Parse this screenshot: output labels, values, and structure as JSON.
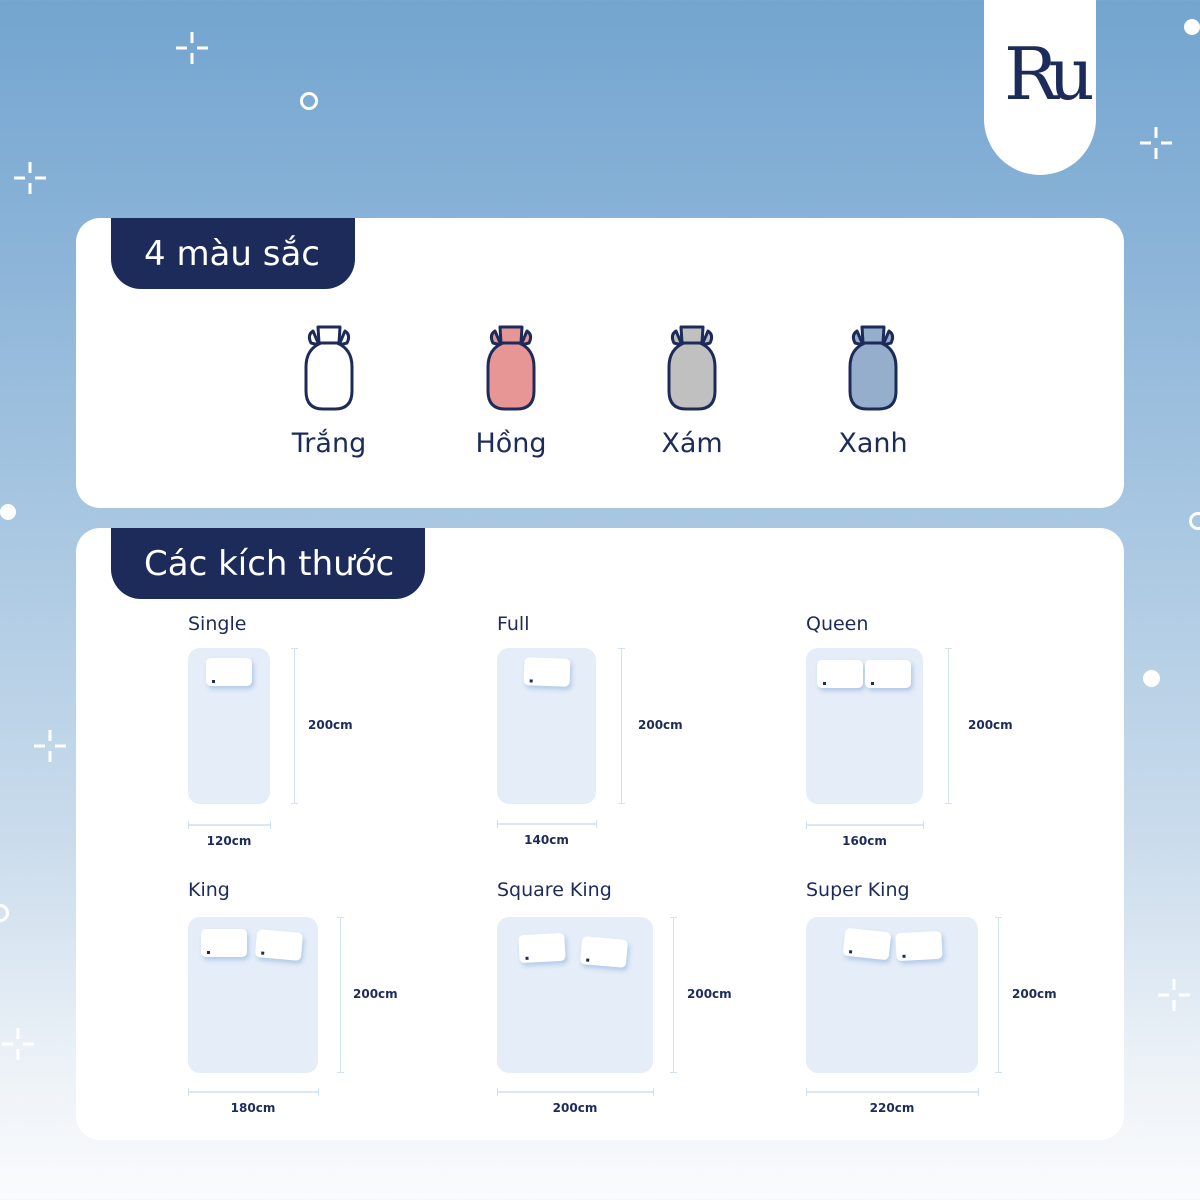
{
  "logo": {
    "text": "Ru"
  },
  "colors_section": {
    "title": "4 màu sắc",
    "items": [
      {
        "label": "Trắng",
        "color": "#ffffff"
      },
      {
        "label": "Hồng",
        "color": "#e89595"
      },
      {
        "label": "Xám",
        "color": "#c0c0c0"
      },
      {
        "label": "Xanh",
        "color": "#94aecb"
      }
    ]
  },
  "sizes_section": {
    "title": "Các kích thước",
    "items": [
      {
        "name": "Single",
        "width": "120cm",
        "length": "200cm",
        "pillows": 1
      },
      {
        "name": "Full",
        "width": "140cm",
        "length": "200cm",
        "pillows": 1
      },
      {
        "name": "Queen",
        "width": "160cm",
        "length": "200cm",
        "pillows": 2
      },
      {
        "name": "King",
        "width": "180cm",
        "length": "200cm",
        "pillows": 2
      },
      {
        "name": "Square King",
        "width": "200cm",
        "length": "200cm",
        "pillows": 2
      },
      {
        "name": "Super King",
        "width": "220cm",
        "length": "200cm",
        "pillows": 2
      }
    ]
  },
  "theme": {
    "navy": "#1c2b5a",
    "bed": "#e4edf8"
  }
}
